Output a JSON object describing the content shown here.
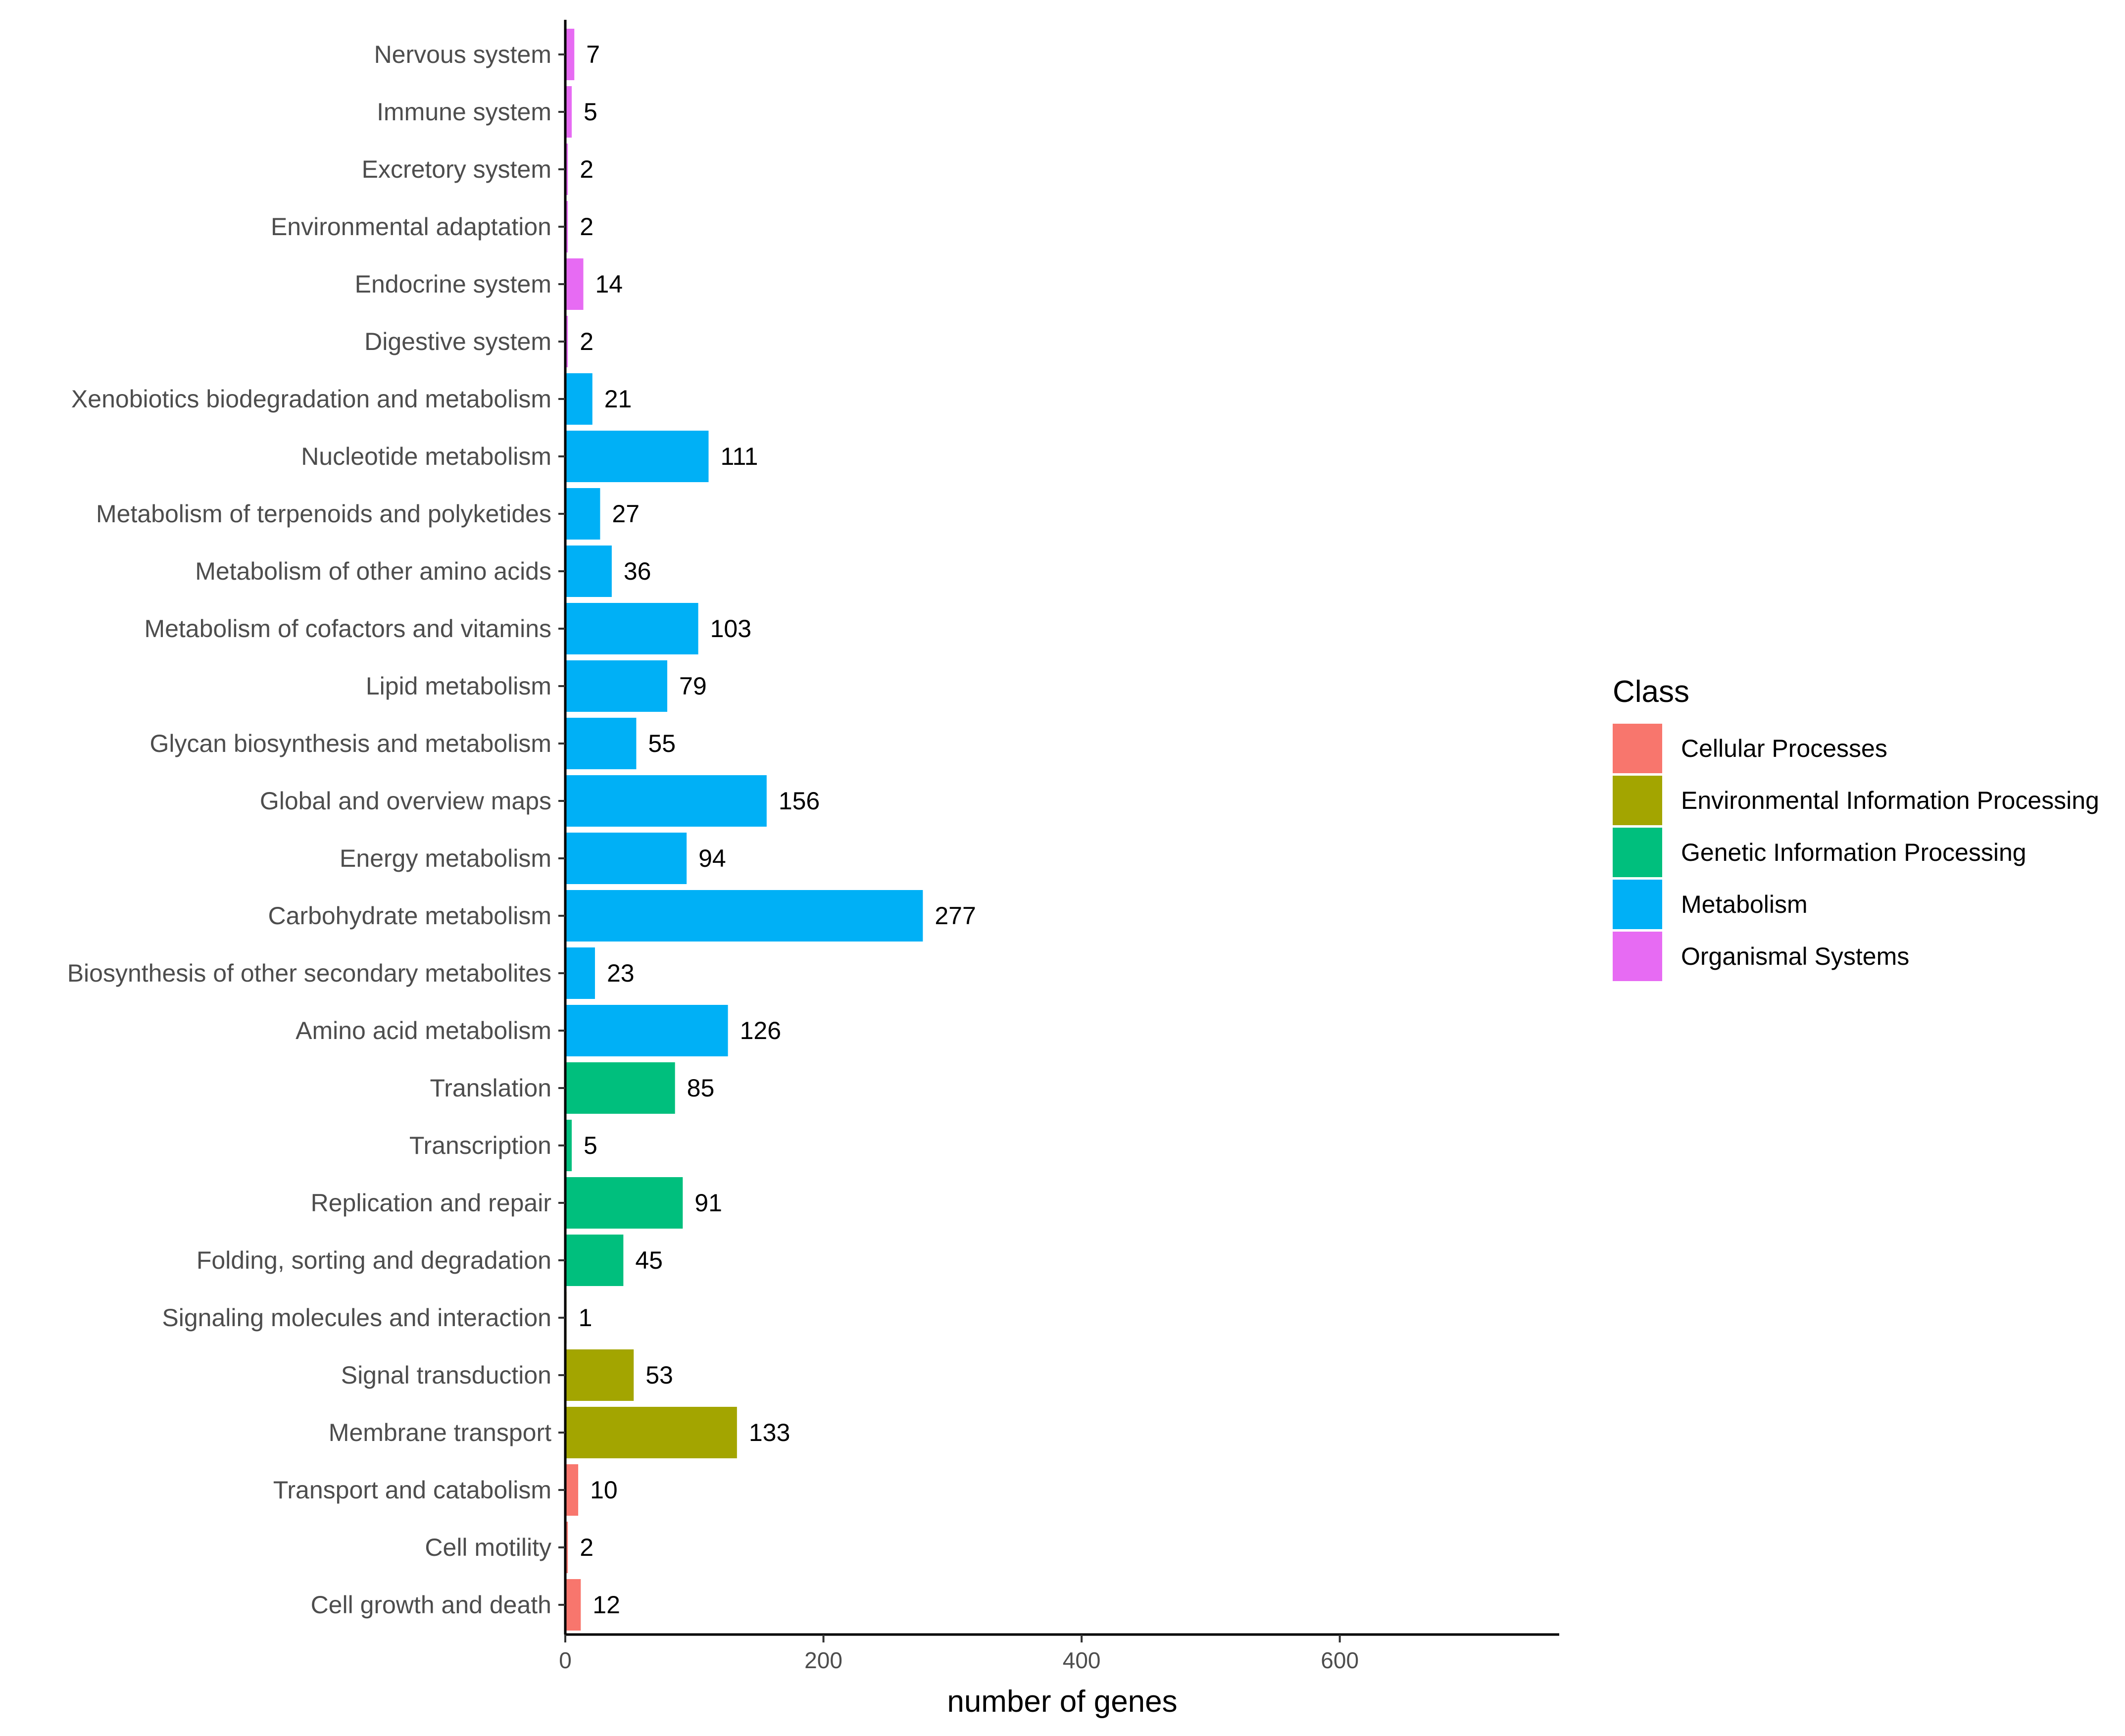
{
  "chart_data": {
    "type": "bar",
    "orientation": "horizontal",
    "title": "",
    "xlabel": "number of genes",
    "ylabel": "",
    "xlim": [
      0,
      770
    ],
    "xticks": [
      0,
      200,
      400,
      600
    ],
    "grid": false,
    "legend": {
      "title": "Class",
      "position": "right",
      "entries": [
        {
          "name": "Cellular Processes",
          "color": "#F8766D"
        },
        {
          "name": "Environmental Information Processing",
          "color": "#A3A500"
        },
        {
          "name": "Genetic Information Processing",
          "color": "#00BF7D"
        },
        {
          "name": "Metabolism",
          "color": "#00B0F6"
        },
        {
          "name": "Organismal Systems",
          "color": "#E76BF3"
        }
      ]
    },
    "bars": [
      {
        "category": "Nervous system",
        "value": 7,
        "class": "Organismal Systems"
      },
      {
        "category": "Immune system",
        "value": 5,
        "class": "Organismal Systems"
      },
      {
        "category": "Excretory system",
        "value": 2,
        "class": "Organismal Systems"
      },
      {
        "category": "Environmental adaptation",
        "value": 2,
        "class": "Organismal Systems"
      },
      {
        "category": "Endocrine system",
        "value": 14,
        "class": "Organismal Systems"
      },
      {
        "category": "Digestive system",
        "value": 2,
        "class": "Organismal Systems"
      },
      {
        "category": "Xenobiotics biodegradation and metabolism",
        "value": 21,
        "class": "Metabolism"
      },
      {
        "category": "Nucleotide metabolism",
        "value": 111,
        "class": "Metabolism"
      },
      {
        "category": "Metabolism of terpenoids and polyketides",
        "value": 27,
        "class": "Metabolism"
      },
      {
        "category": "Metabolism of other amino acids",
        "value": 36,
        "class": "Metabolism"
      },
      {
        "category": "Metabolism of cofactors and vitamins",
        "value": 103,
        "class": "Metabolism"
      },
      {
        "category": "Lipid metabolism",
        "value": 79,
        "class": "Metabolism"
      },
      {
        "category": "Glycan biosynthesis and metabolism",
        "value": 55,
        "class": "Metabolism"
      },
      {
        "category": "Global and overview maps",
        "value": 156,
        "class": "Metabolism"
      },
      {
        "category": "Energy metabolism",
        "value": 94,
        "class": "Metabolism"
      },
      {
        "category": "Carbohydrate metabolism",
        "value": 277,
        "class": "Metabolism"
      },
      {
        "category": "Biosynthesis of other secondary metabolites",
        "value": 23,
        "class": "Metabolism"
      },
      {
        "category": "Amino acid metabolism",
        "value": 126,
        "class": "Metabolism"
      },
      {
        "category": "Translation",
        "value": 85,
        "class": "Genetic Information Processing"
      },
      {
        "category": "Transcription",
        "value": 5,
        "class": "Genetic Information Processing"
      },
      {
        "category": "Replication and repair",
        "value": 91,
        "class": "Genetic Information Processing"
      },
      {
        "category": "Folding, sorting and degradation",
        "value": 45,
        "class": "Genetic Information Processing"
      },
      {
        "category": "Signaling molecules and interaction",
        "value": 1,
        "class": "Environmental Information Processing"
      },
      {
        "category": "Signal transduction",
        "value": 53,
        "class": "Environmental Information Processing"
      },
      {
        "category": "Membrane transport",
        "value": 133,
        "class": "Environmental Information Processing"
      },
      {
        "category": "Transport and catabolism",
        "value": 10,
        "class": "Cellular Processes"
      },
      {
        "category": "Cell motility",
        "value": 2,
        "class": "Cellular Processes"
      },
      {
        "category": "Cell growth and death",
        "value": 12,
        "class": "Cellular Processes"
      }
    ]
  }
}
